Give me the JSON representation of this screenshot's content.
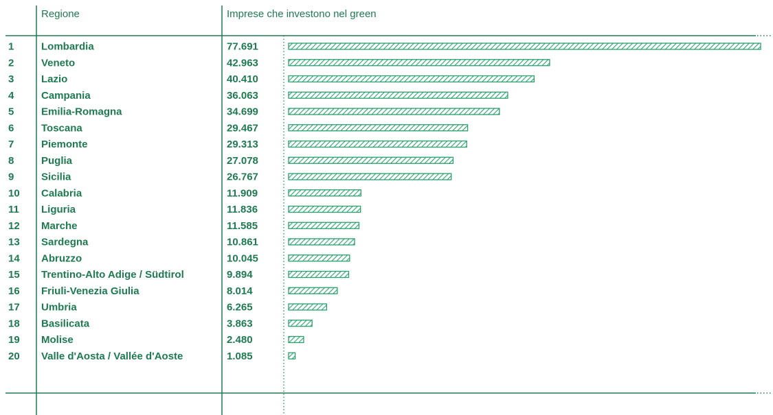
{
  "colors": {
    "accent": "#1e7a50",
    "bar_stroke": "#27a06b",
    "hatch": "#2aa36d"
  },
  "header": {
    "region_col": "Regione",
    "value_col": "Imprese che investono nel green"
  },
  "chart_data": {
    "type": "bar",
    "orientation": "horizontal",
    "title": "",
    "xlabel": "",
    "ylabel": "",
    "bar_style": "diagonal-hatched outline",
    "grid": false,
    "categories": [
      "Lombardia",
      "Veneto",
      "Lazio",
      "Campania",
      "Emilia-Romagna",
      "Toscana",
      "Piemonte",
      "Puglia",
      "Sicilia",
      "Calabria",
      "Liguria",
      "Marche",
      "Sardegna",
      "Abruzzo",
      "Trentino-Alto Adige / Südtirol",
      "Friuli-Venezia Giulia",
      "Umbria",
      "Basilicata",
      "Molise",
      "Valle d'Aosta / Vallée d'Aoste"
    ],
    "ranks": [
      "1",
      "2",
      "3",
      "4",
      "5",
      "6",
      "7",
      "8",
      "9",
      "10",
      "11",
      "12",
      "13",
      "14",
      "15",
      "16",
      "17",
      "18",
      "19",
      "20"
    ],
    "value_labels": [
      "77.691",
      "42.963",
      "40.410",
      "36.063",
      "34.699",
      "29.467",
      "29.313",
      "27.078",
      "26.767",
      "11.909",
      "11.836",
      "11.585",
      "10.861",
      "10.045",
      "9.894",
      "8.014",
      "6.265",
      "3.863",
      "2.480",
      "1.085"
    ],
    "values": [
      77691,
      42963,
      40410,
      36063,
      34699,
      29467,
      29313,
      27078,
      26767,
      11909,
      11836,
      11585,
      10861,
      10045,
      9894,
      8014,
      6265,
      3863,
      2480,
      1085
    ],
    "xlim": [
      0,
      77691
    ]
  }
}
